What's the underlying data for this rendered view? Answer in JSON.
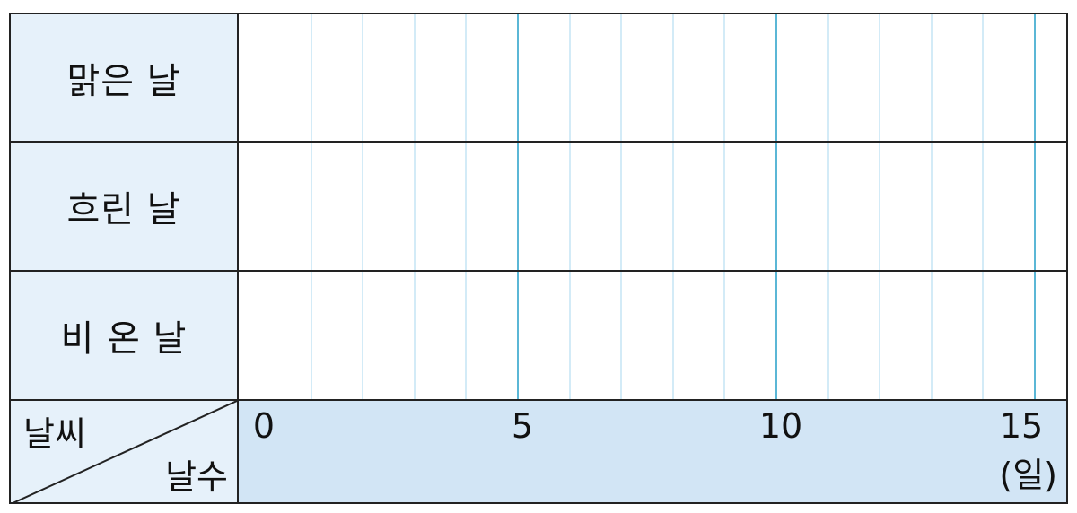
{
  "rows": [
    {
      "label": "맑은 날"
    },
    {
      "label": "흐린 날"
    },
    {
      "label": "비 온 날"
    }
  ],
  "corner": {
    "top_label": "날씨",
    "bottom_label": "날수"
  },
  "axis": {
    "min": 0,
    "max": 15,
    "minor_step": 1,
    "major_step": 5,
    "tick_labels": [
      "0",
      "5",
      "10",
      "15"
    ],
    "unit": "(일)"
  },
  "colors": {
    "label_bg": "#e6f1fa",
    "axis_bg": "#d2e5f5",
    "major_line": "#5bb7d6",
    "minor_line": "#d3ebf7",
    "border": "#222222"
  }
}
